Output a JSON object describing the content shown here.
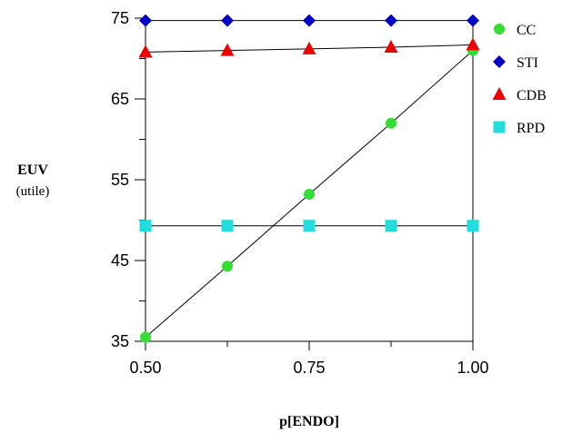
{
  "chart_data": {
    "type": "line",
    "ylabel": "EUV",
    "ylabel_unit": "(utile)",
    "xlabel": "p[ENDO]",
    "x": [
      0.5,
      0.625,
      0.75,
      0.875,
      1.0
    ],
    "xticks": [
      "0.50",
      "0.75",
      "1.00"
    ],
    "yticks": [
      "35",
      "45",
      "55",
      "65",
      "75"
    ],
    "xlim": [
      0.5,
      1.0
    ],
    "ylim": [
      35,
      75
    ],
    "grid": false,
    "legend_position": "right",
    "series": [
      {
        "name": "CC",
        "values": [
          35.5,
          44.3,
          53.2,
          62.0,
          71.0
        ],
        "color": "#33dd33",
        "marker": "circle"
      },
      {
        "name": "STI",
        "values": [
          74.7,
          74.7,
          74.7,
          74.7,
          74.7
        ],
        "color": "#0000cc",
        "marker": "diamond"
      },
      {
        "name": "CDB",
        "values": [
          70.8,
          71.0,
          71.2,
          71.4,
          71.7
        ],
        "color": "#ee0000",
        "marker": "triangle"
      },
      {
        "name": "RPD",
        "values": [
          49.3,
          49.3,
          49.3,
          49.3,
          49.3
        ],
        "color": "#22dddd",
        "marker": "square"
      }
    ]
  }
}
